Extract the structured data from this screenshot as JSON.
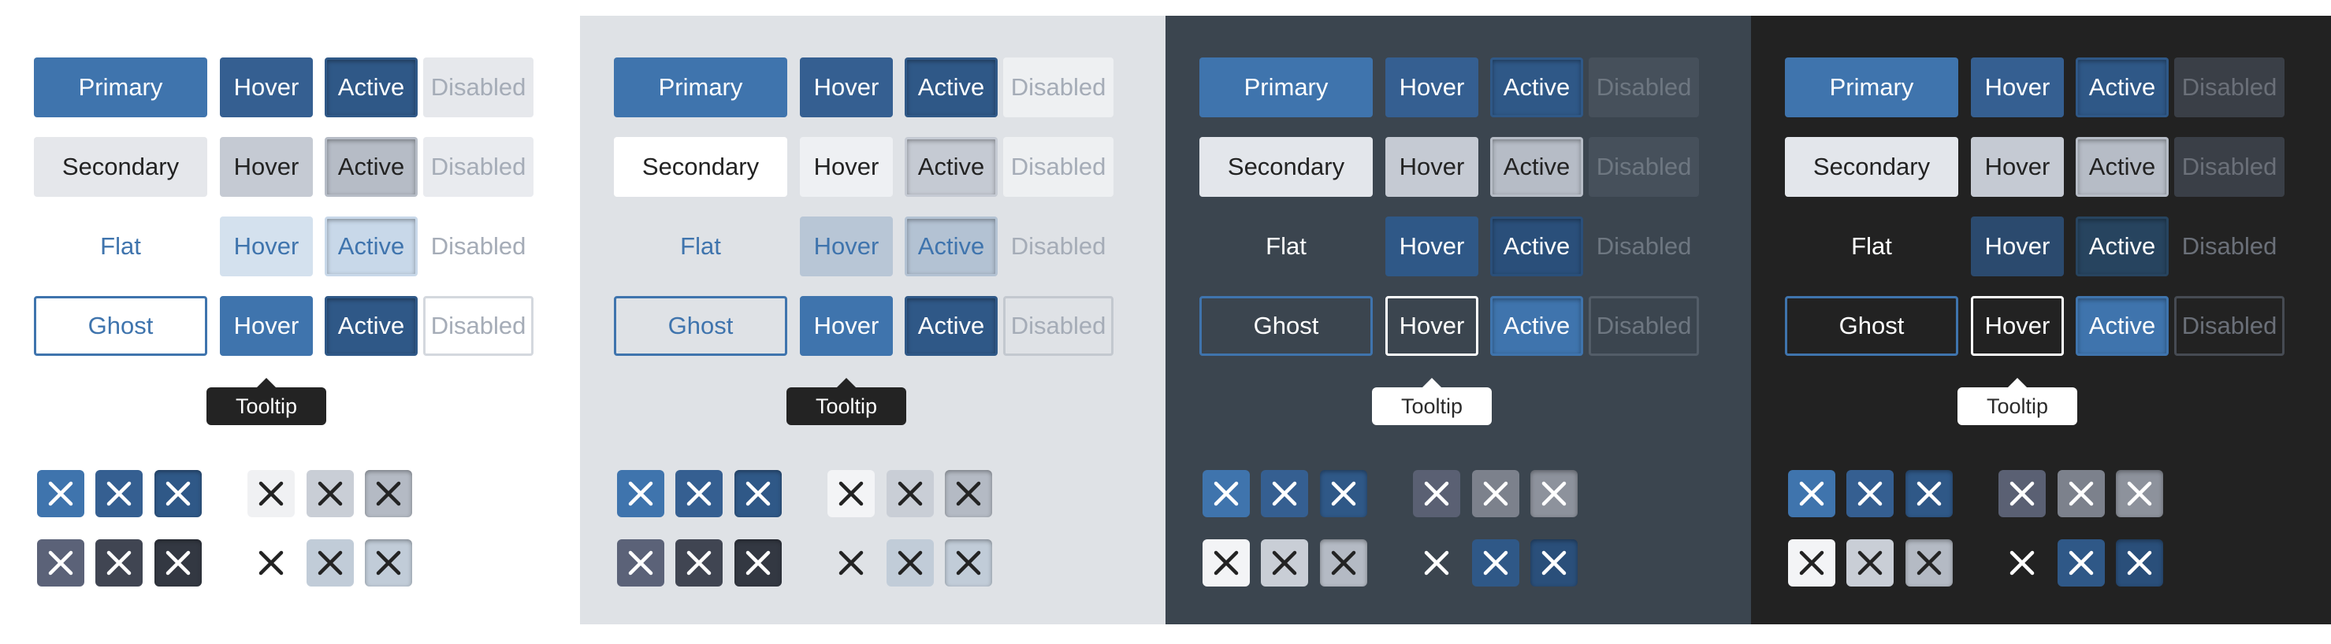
{
  "labels": {
    "primary": "Primary",
    "secondary": "Secondary",
    "flat": "Flat",
    "ghost": "Ghost",
    "hover": "Hover",
    "active": "Active",
    "disabled": "Disabled",
    "tooltip": "Tooltip"
  },
  "variants": [
    "primary",
    "secondary",
    "flat",
    "ghost"
  ],
  "states": [
    "default",
    "hover",
    "active",
    "disabled"
  ],
  "themes": [
    {
      "name": "light",
      "background": "#ffffff",
      "tooltip_style": "dark",
      "buttons": {
        "primary": {
          "default": {
            "bg": "#3f74ad",
            "fg": "#ffffff"
          },
          "hover": {
            "bg": "#355f91",
            "fg": "#ffffff"
          },
          "active": {
            "bg": "#2f5887",
            "fg": "#ffffff",
            "inset": true
          },
          "disabled": {
            "bg": "#e6e8ec",
            "fg": "#a5acb7"
          }
        },
        "secondary": {
          "default": {
            "bg": "#e5e7eb",
            "fg": "#232323"
          },
          "hover": {
            "bg": "#c5cad3",
            "fg": "#232323"
          },
          "active": {
            "bg": "#b6bcc6",
            "fg": "#232323",
            "inset": true
          },
          "disabled": {
            "bg": "#e9ebef",
            "fg": "#a5acb7"
          }
        },
        "flat": {
          "default": {
            "bg": "transparent",
            "fg": "#3f74ad"
          },
          "hover": {
            "bg": "#d4e1ee",
            "fg": "#3f74ad"
          },
          "active": {
            "bg": "#c8d8e9",
            "fg": "#3f74ad",
            "inset": true
          },
          "disabled": {
            "bg": "transparent",
            "fg": "#a5acb7"
          }
        },
        "ghost": {
          "default": {
            "bg": "#ffffff",
            "fg": "#3f74ad",
            "border": "#3f74ad"
          },
          "hover": {
            "bg": "#3f74ad",
            "fg": "#ffffff",
            "border": "#3f74ad"
          },
          "active": {
            "bg": "#2f5887",
            "fg": "#ffffff",
            "border": "#2f5887",
            "inset": true
          },
          "disabled": {
            "bg": "#ffffff",
            "fg": "#a5acb7",
            "border": "#d4d8de"
          }
        }
      },
      "icon_buttons": [
        [
          {
            "bg": "#3f74ad",
            "fg": "#ffffff"
          },
          {
            "bg": "#355f91",
            "fg": "#ffffff"
          },
          {
            "bg": "#2f5887",
            "fg": "#ffffff",
            "inset": true
          },
          {
            "bg": "#f0f1f3",
            "fg": "#232323"
          },
          {
            "bg": "#c9ced6",
            "fg": "#232323"
          },
          {
            "bg": "#b4bac4",
            "fg": "#232323",
            "inset": true
          }
        ],
        [
          {
            "bg": "#5b6278",
            "fg": "#ffffff"
          },
          {
            "bg": "#404552",
            "fg": "#ffffff"
          },
          {
            "bg": "#333842",
            "fg": "#ffffff",
            "inset": true
          },
          {
            "bg": "transparent",
            "fg": "#232323"
          },
          {
            "bg": "#c1ccd8",
            "fg": "#232323"
          },
          {
            "bg": "#c1ccd8",
            "fg": "#232323",
            "inset": true
          }
        ]
      ]
    },
    {
      "name": "light-gray",
      "background": "#dfe2e6",
      "tooltip_style": "dark",
      "buttons": {
        "primary": {
          "default": {
            "bg": "#3f74ad",
            "fg": "#ffffff"
          },
          "hover": {
            "bg": "#355f91",
            "fg": "#ffffff"
          },
          "active": {
            "bg": "#2f5887",
            "fg": "#ffffff",
            "inset": true
          },
          "disabled": {
            "bg": "#eef0f2",
            "fg": "#a5acb7"
          }
        },
        "secondary": {
          "default": {
            "bg": "#ffffff",
            "fg": "#232323"
          },
          "hover": {
            "bg": "#eef0f3",
            "fg": "#232323"
          },
          "active": {
            "bg": "#c5cad3",
            "fg": "#232323",
            "inset": true
          },
          "disabled": {
            "bg": "#eef0f2",
            "fg": "#a5acb7"
          }
        },
        "flat": {
          "default": {
            "bg": "transparent",
            "fg": "#3f74ad"
          },
          "hover": {
            "bg": "#b8c6d6",
            "fg": "#3f74ad"
          },
          "active": {
            "bg": "#b3c2d3",
            "fg": "#3f74ad",
            "inset": true
          },
          "disabled": {
            "bg": "transparent",
            "fg": "#a5acb7"
          }
        },
        "ghost": {
          "default": {
            "bg": "transparent",
            "fg": "#3f74ad",
            "border": "#3f74ad"
          },
          "hover": {
            "bg": "#3f74ad",
            "fg": "#ffffff",
            "border": "#3f74ad"
          },
          "active": {
            "bg": "#2f5887",
            "fg": "#ffffff",
            "border": "#2f5887",
            "inset": true
          },
          "disabled": {
            "bg": "transparent",
            "fg": "#a5acb7",
            "border": "#c3c8cf"
          }
        }
      },
      "icon_buttons": [
        [
          {
            "bg": "#3f74ad",
            "fg": "#ffffff"
          },
          {
            "bg": "#355f91",
            "fg": "#ffffff"
          },
          {
            "bg": "#2f5887",
            "fg": "#ffffff",
            "inset": true
          },
          {
            "bg": "#f3f4f6",
            "fg": "#232323"
          },
          {
            "bg": "#c9ced6",
            "fg": "#232323"
          },
          {
            "bg": "#b4bac4",
            "fg": "#232323",
            "inset": true
          }
        ],
        [
          {
            "bg": "#5b6278",
            "fg": "#ffffff"
          },
          {
            "bg": "#404552",
            "fg": "#ffffff"
          },
          {
            "bg": "#333842",
            "fg": "#ffffff",
            "inset": true
          },
          {
            "bg": "transparent",
            "fg": "#232323"
          },
          {
            "bg": "#c1ccd8",
            "fg": "#232323"
          },
          {
            "bg": "#c1ccd8",
            "fg": "#232323",
            "inset": true
          }
        ]
      ]
    },
    {
      "name": "dark-slate",
      "background": "#3b454f",
      "tooltip_style": "light",
      "buttons": {
        "primary": {
          "default": {
            "bg": "#3f74ad",
            "fg": "#ffffff"
          },
          "hover": {
            "bg": "#355f91",
            "fg": "#ffffff"
          },
          "active": {
            "bg": "#2f5887",
            "fg": "#ffffff",
            "inset": true
          },
          "disabled": {
            "bg": "#46505b",
            "fg": "#6e7781"
          }
        },
        "secondary": {
          "default": {
            "bg": "#e3e6eb",
            "fg": "#232323"
          },
          "hover": {
            "bg": "#c5cad3",
            "fg": "#232323"
          },
          "active": {
            "bg": "#b6bcc6",
            "fg": "#232323",
            "inset": true
          },
          "disabled": {
            "bg": "#46505b",
            "fg": "#6e7781"
          }
        },
        "flat": {
          "default": {
            "bg": "transparent",
            "fg": "#ffffff"
          },
          "hover": {
            "bg": "#2f5887",
            "fg": "#ffffff"
          },
          "active": {
            "bg": "#2a4f7a",
            "fg": "#ffffff",
            "inset": true
          },
          "disabled": {
            "bg": "transparent",
            "fg": "#6e7781"
          }
        },
        "ghost": {
          "default": {
            "bg": "transparent",
            "fg": "#ffffff",
            "border": "#3f74ad"
          },
          "hover": {
            "bg": "transparent",
            "fg": "#ffffff",
            "border": "#ffffff"
          },
          "active": {
            "bg": "#3f74ad",
            "fg": "#ffffff",
            "border": "#3f74ad",
            "inset": true
          },
          "disabled": {
            "bg": "transparent",
            "fg": "#6e7781",
            "border": "#535d68"
          }
        }
      },
      "icon_buttons": [
        [
          {
            "bg": "#3f74ad",
            "fg": "#ffffff"
          },
          {
            "bg": "#355f91",
            "fg": "#ffffff"
          },
          {
            "bg": "#2f5887",
            "fg": "#ffffff",
            "inset": true
          },
          {
            "bg": "#5a6073",
            "fg": "#ffffff"
          },
          {
            "bg": "#7c818c",
            "fg": "#ffffff"
          },
          {
            "bg": "#8d929c",
            "fg": "#ffffff",
            "inset": true
          }
        ],
        [
          {
            "bg": "#f3f4f6",
            "fg": "#232323"
          },
          {
            "bg": "#c9ced6",
            "fg": "#232323"
          },
          {
            "bg": "#b4bac4",
            "fg": "#232323",
            "inset": true
          },
          {
            "bg": "transparent",
            "fg": "#ffffff"
          },
          {
            "bg": "#2f5887",
            "fg": "#ffffff"
          },
          {
            "bg": "#2a4f7a",
            "fg": "#ffffff",
            "inset": true
          }
        ]
      ]
    },
    {
      "name": "dark",
      "background": "#222222",
      "tooltip_style": "light",
      "buttons": {
        "primary": {
          "default": {
            "bg": "#3f74ad",
            "fg": "#ffffff"
          },
          "hover": {
            "bg": "#355f91",
            "fg": "#ffffff"
          },
          "active": {
            "bg": "#2f5887",
            "fg": "#ffffff",
            "inset": true
          },
          "disabled": {
            "bg": "#3a3f47",
            "fg": "#6b7079"
          }
        },
        "secondary": {
          "default": {
            "bg": "#e3e6eb",
            "fg": "#232323"
          },
          "hover": {
            "bg": "#c5cad3",
            "fg": "#232323"
          },
          "active": {
            "bg": "#b6bcc6",
            "fg": "#232323",
            "inset": true
          },
          "disabled": {
            "bg": "#3a3f47",
            "fg": "#6b7079"
          }
        },
        "flat": {
          "default": {
            "bg": "transparent",
            "fg": "#ffffff"
          },
          "hover": {
            "bg": "#2b4a6e",
            "fg": "#ffffff"
          },
          "active": {
            "bg": "#27445f",
            "fg": "#ffffff",
            "inset": true
          },
          "disabled": {
            "bg": "transparent",
            "fg": "#6b7079"
          }
        },
        "ghost": {
          "default": {
            "bg": "transparent",
            "fg": "#ffffff",
            "border": "#3f74ad"
          },
          "hover": {
            "bg": "transparent",
            "fg": "#ffffff",
            "border": "#ffffff"
          },
          "active": {
            "bg": "#3f74ad",
            "fg": "#ffffff",
            "border": "#3f74ad",
            "inset": true
          },
          "disabled": {
            "bg": "transparent",
            "fg": "#6b7079",
            "border": "#464b53"
          }
        }
      },
      "icon_buttons": [
        [
          {
            "bg": "#3f74ad",
            "fg": "#ffffff"
          },
          {
            "bg": "#355f91",
            "fg": "#ffffff"
          },
          {
            "bg": "#2f5887",
            "fg": "#ffffff",
            "inset": true
          },
          {
            "bg": "#5a6073",
            "fg": "#ffffff"
          },
          {
            "bg": "#7c818c",
            "fg": "#ffffff"
          },
          {
            "bg": "#8d929c",
            "fg": "#ffffff",
            "inset": true
          }
        ],
        [
          {
            "bg": "#f3f4f6",
            "fg": "#232323"
          },
          {
            "bg": "#c9ced6",
            "fg": "#232323"
          },
          {
            "bg": "#b4bac4",
            "fg": "#232323",
            "inset": true
          },
          {
            "bg": "transparent",
            "fg": "#ffffff"
          },
          {
            "bg": "#2f5887",
            "fg": "#ffffff"
          },
          {
            "bg": "#2a4f7a",
            "fg": "#ffffff",
            "inset": true
          }
        ]
      ]
    }
  ],
  "icon": "close-icon"
}
